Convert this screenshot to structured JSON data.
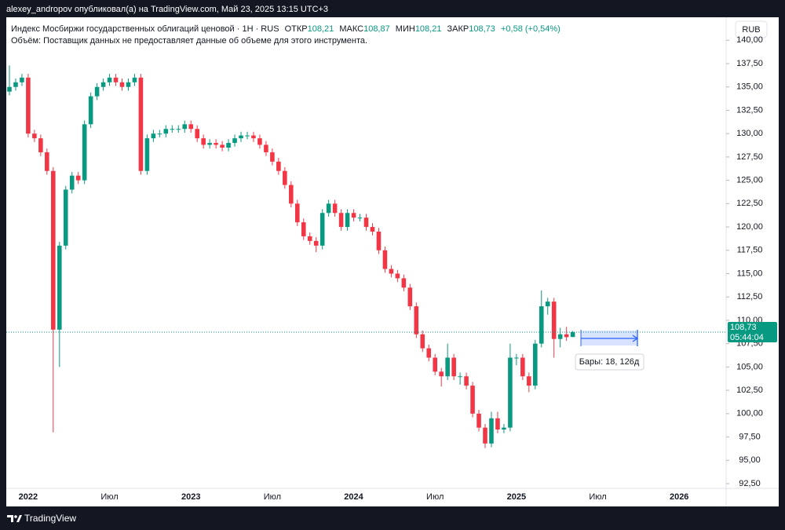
{
  "chart_data": {
    "type": "candlestick",
    "publisher_line": "alexey_andropov опубликовал(а) на TradingView.com, Май 23, 2025 13:15 UTC+3",
    "title": "Индекс Мосбиржи государственных облигаций ценовой · 1H · RUS",
    "legend_open_label": "ОТКР",
    "legend_open": "108,21",
    "legend_high_label": "МАКС",
    "legend_high": "108,87",
    "legend_low_label": "МИН",
    "legend_low": "108,21",
    "legend_close_label": "ЗАКР",
    "legend_close": "108,73",
    "legend_change": "+0,58 (+0,54%)",
    "volume_note": "Объём: Поставщик данных не предоставляет данные об объеме для этого инструмента.",
    "currency": "RUB",
    "last_price_label": "108,73",
    "countdown": "05:44:04",
    "measure_label": "Бары: 18, 126д",
    "brand": "TradingView",
    "up_color": "#089981",
    "down_color": "#f23645",
    "grid": false,
    "categories": [
      null,
      null,
      null,
      "2022",
      null,
      null,
      null,
      null,
      null,
      null,
      null,
      null,
      null,
      null,
      null,
      null,
      "Июл",
      null,
      null,
      null,
      null,
      null,
      null,
      null,
      null,
      null,
      null,
      null,
      null,
      "2023",
      null,
      null,
      null,
      null,
      null,
      null,
      null,
      null,
      null,
      null,
      null,
      null,
      "Июл",
      null,
      null,
      null,
      null,
      null,
      null,
      null,
      null,
      null,
      null,
      null,
      null,
      "2024",
      null,
      null,
      null,
      null,
      null,
      null,
      null,
      null,
      null,
      null,
      null,
      null,
      "Июл",
      null,
      null,
      null,
      null,
      null,
      null,
      null,
      null,
      null,
      null,
      null,
      null,
      "2025",
      null,
      null,
      null,
      null,
      null,
      null,
      null,
      null,
      null,
      null,
      null,
      null,
      "Июл",
      null,
      null,
      null,
      null,
      null,
      null,
      null,
      null,
      null,
      null,
      null,
      null,
      "2026",
      null,
      null,
      null,
      null,
      null,
      null,
      null
    ],
    "open": [
      134.5,
      135,
      135.5,
      136,
      130,
      129.5,
      128,
      126,
      109,
      118,
      124,
      125.5,
      125,
      131,
      134,
      135,
      135.5,
      136,
      135.5,
      135,
      135.5,
      136,
      126,
      129.5,
      130,
      130,
      130.5,
      130.5,
      130.5,
      131,
      130.5,
      129.5,
      128.8,
      129,
      128.8,
      128.5,
      129,
      129.5,
      129.8,
      129.8,
      129.5,
      128.8,
      128,
      127,
      126,
      124.5,
      122.5,
      120.5,
      119,
      118.5,
      118,
      121.5,
      122.5,
      121.5,
      120,
      121.5,
      121,
      121,
      120,
      119.5,
      117.5,
      115.5,
      115,
      114.5,
      113.5,
      111.5,
      108.5,
      107,
      106,
      104.5,
      104,
      106,
      104,
      104,
      103,
      100,
      98.5,
      96.8,
      99.5,
      98.3,
      98.5,
      106,
      106,
      104,
      103,
      107.5,
      111.5,
      112,
      108,
      108.5,
      108.21,
      null,
      null,
      null,
      null,
      null,
      null,
      null,
      null,
      null,
      null,
      null,
      null,
      null,
      null,
      null,
      null,
      null,
      null,
      null,
      null,
      null,
      null,
      null,
      null
    ],
    "high": [
      137.3,
      135.9,
      136.4,
      136.4,
      130.4,
      129.9,
      128.4,
      126.4,
      118.4,
      124.4,
      125.9,
      125.9,
      131.4,
      134.4,
      135.4,
      135.9,
      136.4,
      136.4,
      135.9,
      135.9,
      136.4,
      136.4,
      129.9,
      130.4,
      130.4,
      130.9,
      130.9,
      130.9,
      131.4,
      131.4,
      130.9,
      129.9,
      129.4,
      129.4,
      129.2,
      129.4,
      129.9,
      130.2,
      130.2,
      130.2,
      129.9,
      129.2,
      128.4,
      127.4,
      126.4,
      124.9,
      122.9,
      120.9,
      119.4,
      118.9,
      121.9,
      122.9,
      122.9,
      121.9,
      121.9,
      121.9,
      121.4,
      121.4,
      120.4,
      119.9,
      117.9,
      115.9,
      115.4,
      114.9,
      113.9,
      111.9,
      108.9,
      107.4,
      106.4,
      104.9,
      107.5,
      106.4,
      104.4,
      104.4,
      103.4,
      100.4,
      98.9,
      100.2,
      100.2,
      98.9,
      107.5,
      106.4,
      106.4,
      104.4,
      107.9,
      113.2,
      112.4,
      112.4,
      109.2,
      109.3,
      108.87,
      null,
      null,
      null,
      null,
      null,
      null,
      null,
      null,
      null,
      null,
      null,
      null,
      null,
      null,
      null,
      null,
      null,
      null,
      null,
      null,
      null,
      null,
      null,
      null
    ],
    "low": [
      134.1,
      134.6,
      135.1,
      129.6,
      129.1,
      127.6,
      125.6,
      98,
      105,
      117.6,
      123.6,
      124.6,
      124.6,
      130.6,
      133.6,
      134.6,
      135.1,
      135.1,
      134.6,
      134.6,
      135.1,
      125.6,
      125.6,
      129.1,
      129.6,
      129.6,
      130.1,
      130.1,
      130.1,
      130.1,
      129.1,
      128.4,
      128.4,
      128.4,
      128.1,
      128.1,
      128.6,
      129.1,
      129.4,
      129.1,
      128.4,
      127.6,
      126.6,
      125.6,
      124.1,
      122.1,
      120.1,
      118.6,
      118.1,
      117.3,
      117.6,
      121.1,
      121.1,
      119.6,
      119.6,
      120.6,
      120.6,
      119.6,
      119.1,
      117.1,
      115.1,
      114.6,
      114.1,
      113.1,
      111.1,
      108.1,
      106.6,
      105.6,
      104.1,
      102.9,
      103.6,
      103.6,
      103.1,
      102.6,
      99.6,
      98.1,
      96.3,
      96.4,
      97.9,
      97.9,
      98.1,
      105.2,
      103.6,
      102.3,
      102.6,
      107.1,
      110.6,
      106,
      107.1,
      107.8,
      108.21,
      null,
      null,
      null,
      null,
      null,
      null,
      null,
      null,
      null,
      null,
      null,
      null,
      null,
      null,
      null,
      null,
      null,
      null,
      null,
      null,
      null,
      null,
      null,
      null
    ],
    "close": [
      135,
      135.5,
      136,
      130,
      129.5,
      128,
      126,
      109,
      118,
      124,
      125.5,
      125,
      131,
      134,
      135,
      135.5,
      136,
      135.5,
      135,
      135.5,
      136,
      126,
      129.5,
      130,
      130,
      130.5,
      130.5,
      130.5,
      131,
      130.5,
      129.5,
      128.8,
      129,
      128.8,
      128.5,
      129,
      129.5,
      129.8,
      129.8,
      129.5,
      128.8,
      128,
      127,
      126,
      124.5,
      122.5,
      120.5,
      119,
      118.5,
      118,
      121.5,
      122.5,
      121.5,
      120,
      121.5,
      121,
      121,
      120,
      119.5,
      117.5,
      115.5,
      115,
      114.5,
      113.5,
      111.5,
      108.5,
      107,
      106,
      104.5,
      104,
      106,
      104,
      104,
      103,
      100,
      98.5,
      96.8,
      99.5,
      98.3,
      98.5,
      106,
      106,
      104,
      103,
      107.5,
      111.5,
      112,
      108,
      108.5,
      108.2,
      108.73,
      null,
      null,
      null,
      null,
      null,
      null,
      null,
      null,
      null,
      null,
      null,
      null,
      null,
      null,
      null,
      null,
      null,
      null,
      null,
      null,
      null,
      null,
      null,
      null
    ],
    "ylim": [
      91.74,
      140.95
    ],
    "yticks": [
      {
        "value": 92.5,
        "label": "92,50"
      },
      {
        "value": 95,
        "label": "95,00"
      },
      {
        "value": 97.5,
        "label": "97,50"
      },
      {
        "value": 100,
        "label": "100,00"
      },
      {
        "value": 102.5,
        "label": "102,50"
      },
      {
        "value": 105,
        "label": "105,00"
      },
      {
        "value": 107.5,
        "label": "107,50"
      },
      {
        "value": 110,
        "label": "110,00"
      },
      {
        "value": 112.5,
        "label": "112,50"
      },
      {
        "value": 115,
        "label": "115,00"
      },
      {
        "value": 117.5,
        "label": "117,50"
      },
      {
        "value": 120,
        "label": "120,00"
      },
      {
        "value": 122.5,
        "label": "122,50"
      },
      {
        "value": 125,
        "label": "125,00"
      },
      {
        "value": 127.5,
        "label": "127,50"
      },
      {
        "value": 130,
        "label": "130,00"
      },
      {
        "value": 132.5,
        "label": "132,50"
      },
      {
        "value": 135,
        "label": "135,00"
      },
      {
        "value": 137.5,
        "label": "137,50"
      },
      {
        "value": 140,
        "label": "140,00"
      }
    ]
  }
}
